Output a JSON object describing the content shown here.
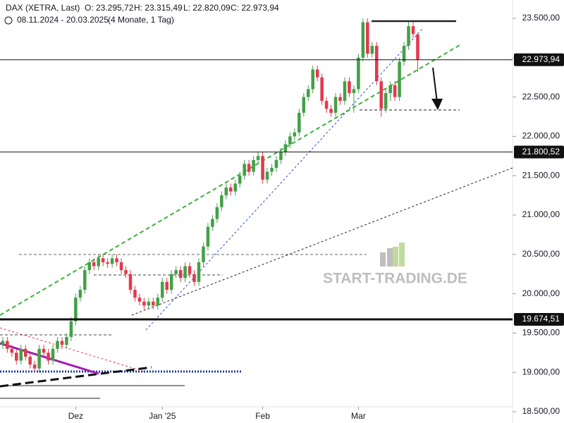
{
  "header": {
    "symbol": "DAX (XETRA, Last)",
    "o": "O: 23.295,72",
    "h": "H: 23.315,49",
    "l": "L: 22.820,09",
    "c": "C: 22.973,94",
    "range": "08.11.2024 - 20.03.2025",
    "span": "(4 Monate, 1 Tag)"
  },
  "watermark": "START-TRADING.DE",
  "chart_data": {
    "type": "candlestick",
    "up_color": "#43a047",
    "down_color": "#e2394f",
    "open": [
      19350,
      19400,
      19300,
      19250,
      19150,
      19300,
      19200,
      19100,
      19050,
      19300,
      19250,
      19150,
      19300,
      19400,
      19350,
      19450,
      19650,
      19950,
      20050,
      20300,
      20400,
      20350,
      20450,
      20400,
      20380,
      20450,
      20400,
      20300,
      20250,
      20050,
      19950,
      19900,
      19850,
      19900,
      19850,
      19950,
      20150,
      20050,
      20250,
      20300,
      20200,
      20350,
      20250,
      20150,
      20400,
      20600,
      20850,
      20950,
      21100,
      21250,
      21350,
      21300,
      21400,
      21500,
      21650,
      21550,
      21700,
      21750,
      21450,
      21550,
      21600,
      21700,
      21800,
      21900,
      22000,
      22050,
      22300,
      22500,
      22600,
      22850,
      22750,
      22450,
      22350,
      22300,
      22500,
      22450,
      22700,
      22550,
      22600,
      23000,
      23450,
      23050,
      23150,
      22700,
      22350,
      22550,
      22650,
      22500,
      22950,
      23150,
      23400,
      23295.72
    ],
    "high": [
      19450,
      19450,
      19350,
      19300,
      19350,
      19350,
      19250,
      19150,
      19350,
      19350,
      19300,
      19350,
      19450,
      19450,
      19500,
      19700,
      20000,
      20100,
      20350,
      20450,
      20450,
      20500,
      20500,
      20450,
      20500,
      20500,
      20450,
      20350,
      20300,
      20100,
      20000,
      19950,
      19950,
      19950,
      20000,
      20200,
      20200,
      20300,
      20350,
      20350,
      20400,
      20400,
      20300,
      20450,
      20650,
      20900,
      21000,
      21150,
      21300,
      21400,
      21400,
      21450,
      21550,
      21700,
      21700,
      21750,
      21800,
      21800,
      21600,
      21650,
      21750,
      21850,
      21950,
      22050,
      22100,
      22350,
      22550,
      22650,
      22900,
      22900,
      22800,
      22500,
      22400,
      22550,
      22550,
      22750,
      22750,
      22650,
      23050,
      23500,
      23500,
      23200,
      23200,
      22750,
      22600,
      22700,
      22700,
      23000,
      23200,
      23450,
      23450,
      23315.49
    ],
    "low": [
      19300,
      19250,
      19200,
      19100,
      19100,
      19150,
      19050,
      19000,
      19000,
      19200,
      19100,
      19100,
      19250,
      19300,
      19300,
      19400,
      19600,
      19900,
      20000,
      20250,
      20300,
      20300,
      20350,
      20330,
      20330,
      20350,
      20250,
      20200,
      20000,
      19900,
      19850,
      19800,
      19800,
      19800,
      19800,
      19900,
      20000,
      20000,
      20200,
      20150,
      20150,
      20200,
      20100,
      20100,
      20350,
      20550,
      20800,
      20900,
      21050,
      21200,
      21250,
      21250,
      21350,
      21450,
      21500,
      21500,
      21650,
      21400,
      21400,
      21500,
      21550,
      21650,
      21750,
      21850,
      21950,
      22000,
      22250,
      22450,
      22550,
      22700,
      22400,
      22300,
      22250,
      22250,
      22400,
      22400,
      22500,
      22300,
      22550,
      22950,
      23000,
      23000,
      22650,
      22250,
      22300,
      22450,
      22450,
      22450,
      22900,
      23100,
      23250,
      22820.09
    ],
    "close": [
      19400,
      19300,
      19250,
      19150,
      19300,
      19200,
      19100,
      19050,
      19300,
      19250,
      19150,
      19300,
      19400,
      19350,
      19450,
      19650,
      19950,
      20050,
      20300,
      20400,
      20350,
      20450,
      20400,
      20380,
      20450,
      20400,
      20300,
      20250,
      20050,
      19950,
      19900,
      19850,
      19900,
      19850,
      19950,
      20150,
      20050,
      20250,
      20300,
      20200,
      20350,
      20250,
      20150,
      20400,
      20600,
      20850,
      20950,
      21100,
      21250,
      21350,
      21300,
      21400,
      21500,
      21650,
      21550,
      21700,
      21750,
      21450,
      21550,
      21600,
      21700,
      21800,
      21900,
      22000,
      22050,
      22300,
      22500,
      22600,
      22850,
      22750,
      22450,
      22350,
      22300,
      22500,
      22450,
      22700,
      22550,
      22600,
      23000,
      23450,
      23050,
      23150,
      22700,
      22350,
      22550,
      22650,
      22500,
      22950,
      23150,
      23400,
      23300,
      22973.94
    ],
    "xlim": [
      -0.6,
      111.8
    ],
    "xticks": [
      {
        "value": 16,
        "label": "Dez"
      },
      {
        "value": 35,
        "label": "Jan '25"
      },
      {
        "value": 57,
        "label": "Feb"
      },
      {
        "value": 78,
        "label": "Mar"
      }
    ],
    "ylim": [
      18357,
      23733
    ],
    "yticks": [
      {
        "value": 18500,
        "label": "18.500,00"
      },
      {
        "value": 19000,
        "label": "19.000,00"
      },
      {
        "value": 19500,
        "label": "19.500,00"
      },
      {
        "value": 20000,
        "label": "20.000,00"
      },
      {
        "value": 20500,
        "label": "20.500,00"
      },
      {
        "value": 21000,
        "label": "21.000,00"
      },
      {
        "value": 21500,
        "label": "21.500,00"
      },
      {
        "value": 22000,
        "label": "22.000,00"
      },
      {
        "value": 22500,
        "label": "22.500,00"
      },
      {
        "value": 23000,
        "label": "23.000,00"
      },
      {
        "value": 23500,
        "label": "23.500,00"
      }
    ],
    "price_lines": [
      {
        "value": 22973.94,
        "label": "22.973,94"
      },
      {
        "value": 21800.52,
        "label": "21.800,52"
      },
      {
        "value": 19674.51,
        "label": "19.674,51"
      }
    ]
  }
}
